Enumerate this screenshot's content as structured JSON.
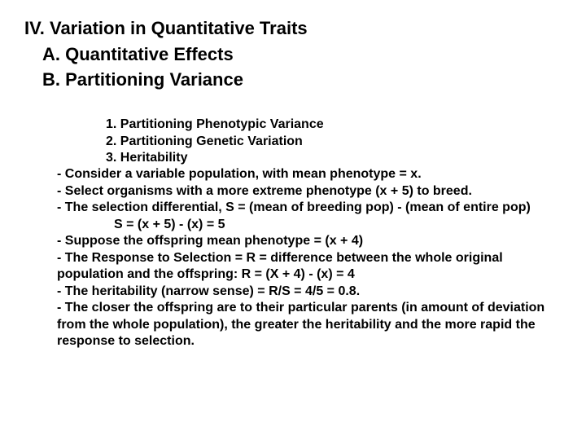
{
  "heading": {
    "main": "IV. Variation in Quantitative Traits",
    "subA": "A. Quantitative Effects",
    "subB": "B. Partitioning Variance"
  },
  "body": {
    "l1": "1. Partitioning Phenotypic Variance",
    "l2": "2. Partitioning Genetic Variation",
    "l3": "3. Heritability",
    "l4": "- Consider a variable population, with mean phenotype = x.",
    "l5": "- Select organisms with a more extreme phenotype (x + 5) to breed.",
    "l6": "- The selection differential, S = (mean of breeding pop) - (mean of entire pop)",
    "l7": "S = (x + 5) - (x) = 5",
    "l8": "- Suppose the offspring mean phenotype = (x + 4)",
    "l9": "- The Response to Selection = R = difference between the whole original population and the offspring: R = (X + 4) - (x) = 4",
    "l10": "- The heritability (narrow sense) = R/S = 4/5 = 0.8.",
    "l11": "- The closer the offspring are to their particular parents (in amount of deviation from the whole population), the greater the heritability and the more rapid the response to selection."
  },
  "style": {
    "background_color": "#ffffff",
    "text_color": "#000000",
    "heading_fontsize": 22,
    "body_fontsize": 16,
    "font_family": "Arial",
    "font_weight": "bold"
  }
}
